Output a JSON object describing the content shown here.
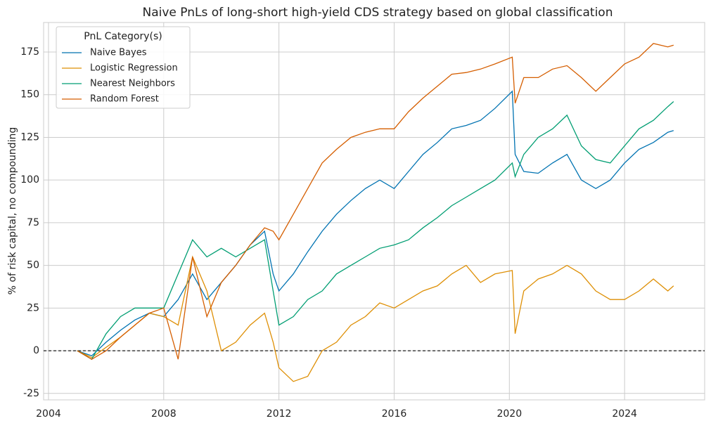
{
  "chart_data": {
    "type": "line",
    "title": "Naive PnLs of long-short high-yield CDS strategy based on global classification",
    "ylabel": "% of risk capital, no compounding",
    "legend_title": "PnL Category(s)",
    "legend": "upper left",
    "grid": true,
    "hline": 0,
    "x": [
      2005,
      2005.5,
      2006,
      2006.5,
      2007,
      2007.5,
      2008,
      2008.5,
      2009,
      2009.5,
      2010,
      2010.5,
      2011,
      2011.5,
      2011.8,
      2012,
      2012.5,
      2013,
      2013.5,
      2014,
      2014.5,
      2015,
      2015.5,
      2016,
      2016.5,
      2017,
      2017.5,
      2018,
      2018.5,
      2019,
      2019.5,
      2020.1,
      2020.2,
      2020.5,
      2021,
      2021.5,
      2022,
      2022.5,
      2023,
      2023.5,
      2024,
      2024.5,
      2025,
      2025.5,
      2025.7
    ],
    "series": [
      {
        "name": "Naive Bayes",
        "color": "#0173b2",
        "values": [
          0,
          -3,
          5,
          12,
          18,
          22,
          20,
          30,
          45,
          30,
          40,
          50,
          62,
          70,
          45,
          35,
          45,
          58,
          70,
          80,
          88,
          95,
          100,
          95,
          105,
          115,
          122,
          130,
          132,
          135,
          142,
          152,
          115,
          105,
          104,
          110,
          115,
          100,
          95,
          100,
          110,
          118,
          122,
          128,
          129
        ]
      },
      {
        "name": "Logistic Regression",
        "color": "#de8f05",
        "values": [
          0,
          -4,
          2,
          8,
          15,
          22,
          20,
          15,
          55,
          35,
          0,
          5,
          15,
          22,
          5,
          -10,
          -18,
          -15,
          0,
          5,
          15,
          20,
          28,
          25,
          30,
          35,
          38,
          45,
          50,
          40,
          45,
          47,
          10,
          35,
          42,
          45,
          50,
          45,
          35,
          30,
          30,
          35,
          42,
          35,
          38
        ]
      },
      {
        "name": "Nearest Neighbors",
        "color": "#029e73",
        "values": [
          0,
          -5,
          10,
          20,
          25,
          25,
          25,
          45,
          65,
          55,
          60,
          55,
          60,
          65,
          35,
          15,
          20,
          30,
          35,
          45,
          50,
          55,
          60,
          62,
          65,
          72,
          78,
          85,
          90,
          95,
          100,
          110,
          102,
          115,
          125,
          130,
          138,
          120,
          112,
          110,
          120,
          130,
          135,
          143,
          146
        ]
      },
      {
        "name": "Random Forest",
        "color": "#d55e00",
        "values": [
          0,
          -5,
          0,
          8,
          15,
          22,
          25,
          -5,
          55,
          20,
          40,
          50,
          62,
          72,
          70,
          65,
          80,
          95,
          110,
          118,
          125,
          128,
          130,
          130,
          140,
          148,
          155,
          162,
          163,
          165,
          168,
          172,
          145,
          160,
          160,
          165,
          167,
          160,
          152,
          160,
          168,
          172,
          180,
          178,
          179
        ]
      }
    ],
    "xlim": [
      2003.83,
      2026.78
    ],
    "xticks": [
      2004,
      2008,
      2012,
      2016,
      2020,
      2024
    ],
    "ylim": [
      -28.8,
      192.3
    ],
    "yticks": [
      -25,
      0,
      25,
      50,
      75,
      100,
      125,
      150,
      175
    ]
  }
}
